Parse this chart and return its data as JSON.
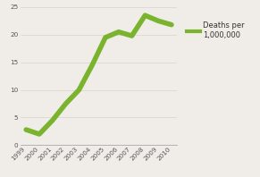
{
  "years": [
    1999,
    2000,
    2001,
    2002,
    2003,
    2004,
    2005,
    2006,
    2007,
    2008,
    2009,
    2010
  ],
  "values": [
    2.8,
    2.0,
    4.5,
    7.5,
    10.0,
    14.5,
    19.5,
    20.5,
    19.8,
    23.5,
    22.5,
    21.8
  ],
  "line_color": "#7ab32e",
  "line_width": 4.0,
  "bg_color": "#f0ede8",
  "plot_bg": "#f0ede8",
  "grid_color": "#d8d4cc",
  "ylim": [
    0,
    25
  ],
  "yticks": [
    0,
    5,
    10,
    15,
    20,
    25
  ],
  "legend_label": "Deaths per\n1,000,000",
  "legend_fontsize": 6.0,
  "tick_fontsize": 5.2,
  "xlim_left": 1998.6,
  "xlim_right": 2010.4
}
